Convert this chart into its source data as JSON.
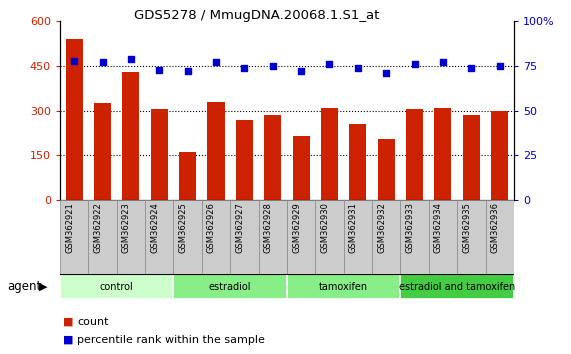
{
  "title": "GDS5278 / MmugDNA.20068.1.S1_at",
  "samples": [
    "GSM362921",
    "GSM362922",
    "GSM362923",
    "GSM362924",
    "GSM362925",
    "GSM362926",
    "GSM362927",
    "GSM362928",
    "GSM362929",
    "GSM362930",
    "GSM362931",
    "GSM362932",
    "GSM362933",
    "GSM362934",
    "GSM362935",
    "GSM362936"
  ],
  "counts": [
    540,
    325,
    430,
    305,
    160,
    330,
    270,
    285,
    215,
    310,
    255,
    205,
    305,
    310,
    285,
    300
  ],
  "percentile_ranks": [
    78,
    77,
    79,
    73,
    72,
    77,
    74,
    75,
    72,
    76,
    74,
    71,
    76,
    77,
    74,
    75
  ],
  "groups": [
    {
      "label": "control",
      "start": 0,
      "end": 4,
      "color": "#ccffcc"
    },
    {
      "label": "estradiol",
      "start": 4,
      "end": 8,
      "color": "#88ee88"
    },
    {
      "label": "tamoxifen",
      "start": 8,
      "end": 12,
      "color": "#88ee88"
    },
    {
      "label": "estradiol and tamoxifen",
      "start": 12,
      "end": 16,
      "color": "#44cc44"
    }
  ],
  "bar_color": "#cc2200",
  "dot_color": "#0000cc",
  "ylim_left": [
    0,
    600
  ],
  "ylim_right": [
    0,
    100
  ],
  "left_yticks": [
    0,
    150,
    300,
    450,
    600
  ],
  "right_yticks": [
    0,
    25,
    50,
    75,
    100
  ],
  "left_yticklabels": [
    "0",
    "150",
    "300",
    "450",
    "600"
  ],
  "right_yticklabels": [
    "0",
    "25",
    "50",
    "75",
    "100%"
  ],
  "grid_values": [
    150,
    300,
    450
  ],
  "agent_label": "agent",
  "legend_count_label": "count",
  "legend_percentile_label": "percentile rank within the sample",
  "background_color": "#ffffff",
  "label_box_color": "#cccccc",
  "label_box_edge": "#888888"
}
